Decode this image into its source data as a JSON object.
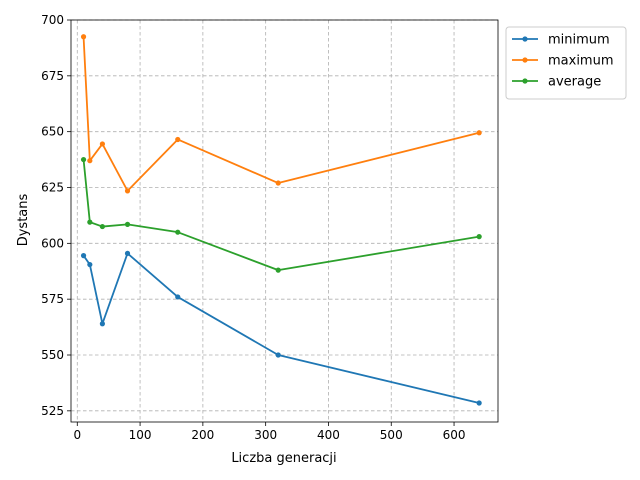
{
  "chart_data": {
    "type": "line",
    "title": "",
    "xlabel": "Liczba generacji",
    "ylabel": "Dystans",
    "xlim": [
      -10,
      670
    ],
    "ylim": [
      520,
      700
    ],
    "xticks": [
      0,
      100,
      200,
      300,
      400,
      500,
      600
    ],
    "yticks": [
      525,
      550,
      575,
      600,
      625,
      650,
      675,
      700
    ],
    "grid": true,
    "legend_position": "outside-top-right",
    "x": [
      10,
      20,
      40,
      80,
      160,
      320,
      640
    ],
    "series": [
      {
        "name": "minimum",
        "color": "#1f77b4",
        "values": [
          594.5,
          590.5,
          564,
          595.5,
          576,
          550,
          528.5
        ]
      },
      {
        "name": "maximum",
        "color": "#ff7f0e",
        "values": [
          692.5,
          637,
          644.5,
          623.5,
          646.5,
          627,
          649.5
        ]
      },
      {
        "name": "average",
        "color": "#2ca02c",
        "values": [
          637.5,
          609.5,
          607.5,
          608.5,
          605,
          588,
          603
        ]
      }
    ]
  }
}
